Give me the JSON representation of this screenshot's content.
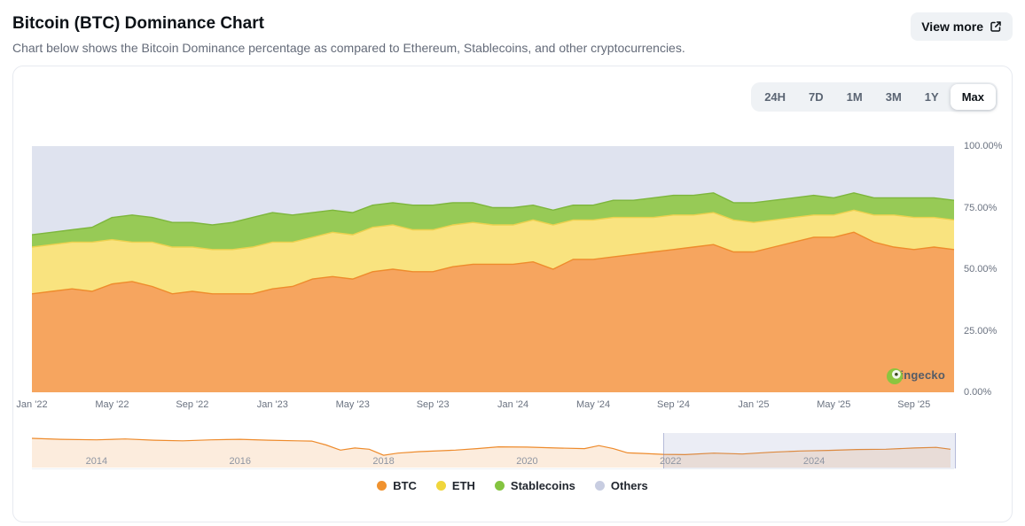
{
  "header": {
    "title": "Bitcoin (BTC) Dominance Chart",
    "subtitle": "Chart below shows the Bitcoin Dominance percentage as compared to Ethereum, Stablecoins, and other cryptocurrencies.",
    "view_more_label": "View more"
  },
  "ranges": {
    "options": [
      "24H",
      "7D",
      "1M",
      "3M",
      "1Y",
      "Max"
    ],
    "selected": "Max"
  },
  "watermark": {
    "text": "coingecko"
  },
  "legend": [
    {
      "label": "BTC",
      "color": "#f0922f"
    },
    {
      "label": "ETH",
      "color": "#f0d63c"
    },
    {
      "label": "Stablecoins",
      "color": "#84c440"
    },
    {
      "label": "Others",
      "color": "#c8cde1"
    }
  ],
  "chart_data": [
    {
      "type": "area",
      "stacked": true,
      "unit": "%",
      "ylim": [
        0,
        100
      ],
      "y_ticks": [
        {
          "label": "100.00%",
          "value": 100
        },
        {
          "label": "75.00%",
          "value": 75
        },
        {
          "label": "50.00%",
          "value": 50
        },
        {
          "label": "25.00%",
          "value": 25
        },
        {
          "label": "0.00%",
          "value": 0
        }
      ],
      "x_ticks": {
        "labels": [
          "Jan '22",
          "May '22",
          "Sep '22",
          "Jan '23",
          "May '23",
          "Sep '23",
          "Jan '24",
          "May '24",
          "Sep '24",
          "Jan '25",
          "May '25",
          "Sep '25"
        ],
        "positions": [
          0,
          4,
          8,
          12,
          16,
          20,
          24,
          28,
          32,
          36,
          40,
          44
        ]
      },
      "series": [
        {
          "name": "BTC",
          "color": "#f6a55f",
          "line_color": "#ee8b2c",
          "values": [
            40,
            41,
            42,
            41,
            44,
            45,
            43,
            40,
            41,
            40,
            40,
            40,
            42,
            43,
            46,
            47,
            46,
            49,
            50,
            49,
            49,
            51,
            52,
            52,
            52,
            53,
            50,
            54,
            54,
            55,
            56,
            57,
            58,
            59,
            60,
            57,
            57,
            59,
            61,
            63,
            63,
            65,
            61,
            59,
            58,
            59,
            58
          ]
        },
        {
          "name": "ETH",
          "color": "#f9e37f",
          "line_color": "#ecd14e",
          "values": [
            19,
            19,
            19,
            20,
            18,
            16,
            18,
            19,
            18,
            18,
            18,
            19,
            19,
            18,
            17,
            18,
            18,
            18,
            18,
            17,
            17,
            17,
            17,
            16,
            16,
            17,
            18,
            16,
            16,
            16,
            15,
            14,
            14,
            13,
            13,
            13,
            12,
            11,
            10,
            9,
            9,
            9,
            11,
            13,
            13,
            12,
            12
          ]
        },
        {
          "name": "Stablecoins",
          "color": "#97ca56",
          "line_color": "#7db63c",
          "values": [
            5,
            5,
            5,
            6,
            9,
            11,
            10,
            10,
            10,
            10,
            11,
            12,
            12,
            11,
            10,
            9,
            9,
            9,
            9,
            10,
            10,
            9,
            8,
            7,
            7,
            6,
            6,
            6,
            6,
            7,
            7,
            8,
            8,
            8,
            8,
            7,
            8,
            8,
            8,
            8,
            7,
            7,
            7,
            7,
            8,
            8,
            8
          ]
        },
        {
          "name": "Others",
          "color": "#dfe3ef",
          "line_color": "",
          "values": [
            36,
            35,
            34,
            33,
            29,
            28,
            29,
            31,
            31,
            32,
            31,
            29,
            27,
            28,
            27,
            26,
            27,
            24,
            23,
            24,
            24,
            23,
            23,
            25,
            25,
            24,
            26,
            24,
            24,
            22,
            22,
            21,
            20,
            20,
            19,
            23,
            23,
            22,
            21,
            20,
            21,
            19,
            21,
            21,
            21,
            21,
            22
          ]
        }
      ]
    },
    {
      "type": "line",
      "name": "BTC dominance history (navigator)",
      "unit": "%",
      "line_color": "#ee8b2c",
      "fill_color": "rgba(238,139,44,0.16)",
      "x_range": [
        2013.1,
        2025.95
      ],
      "x_years": [
        2013.1,
        2013.5,
        2014,
        2014.4,
        2014.8,
        2015.2,
        2015.6,
        2016,
        2016.4,
        2016.8,
        2017,
        2017.2,
        2017.4,
        2017.6,
        2017.8,
        2018,
        2018.2,
        2018.5,
        2018.8,
        2019,
        2019.3,
        2019.6,
        2020,
        2020.4,
        2020.8,
        2021,
        2021.2,
        2021.4,
        2021.6,
        2021.9,
        2022.2,
        2022.6,
        2023,
        2023.4,
        2023.8,
        2024.2,
        2024.6,
        2025,
        2025.4,
        2025.7,
        2025.9
      ],
      "values": [
        94,
        91,
        89,
        92,
        88,
        86,
        89,
        91,
        88,
        86,
        85,
        72,
        55,
        62,
        58,
        38,
        45,
        50,
        53,
        55,
        60,
        66,
        65,
        62,
        60,
        70,
        60,
        46,
        44,
        41,
        40,
        45,
        42,
        48,
        52,
        54,
        57,
        58,
        62,
        64,
        58
      ],
      "tick_labels": [
        "2014",
        "2016",
        "2018",
        "2020",
        "2022",
        "2024"
      ],
      "tick_years": [
        2014,
        2016,
        2018,
        2020,
        2022,
        2024
      ],
      "selection": {
        "start_year": 2021.9,
        "end_year": 2025.95
      }
    }
  ]
}
